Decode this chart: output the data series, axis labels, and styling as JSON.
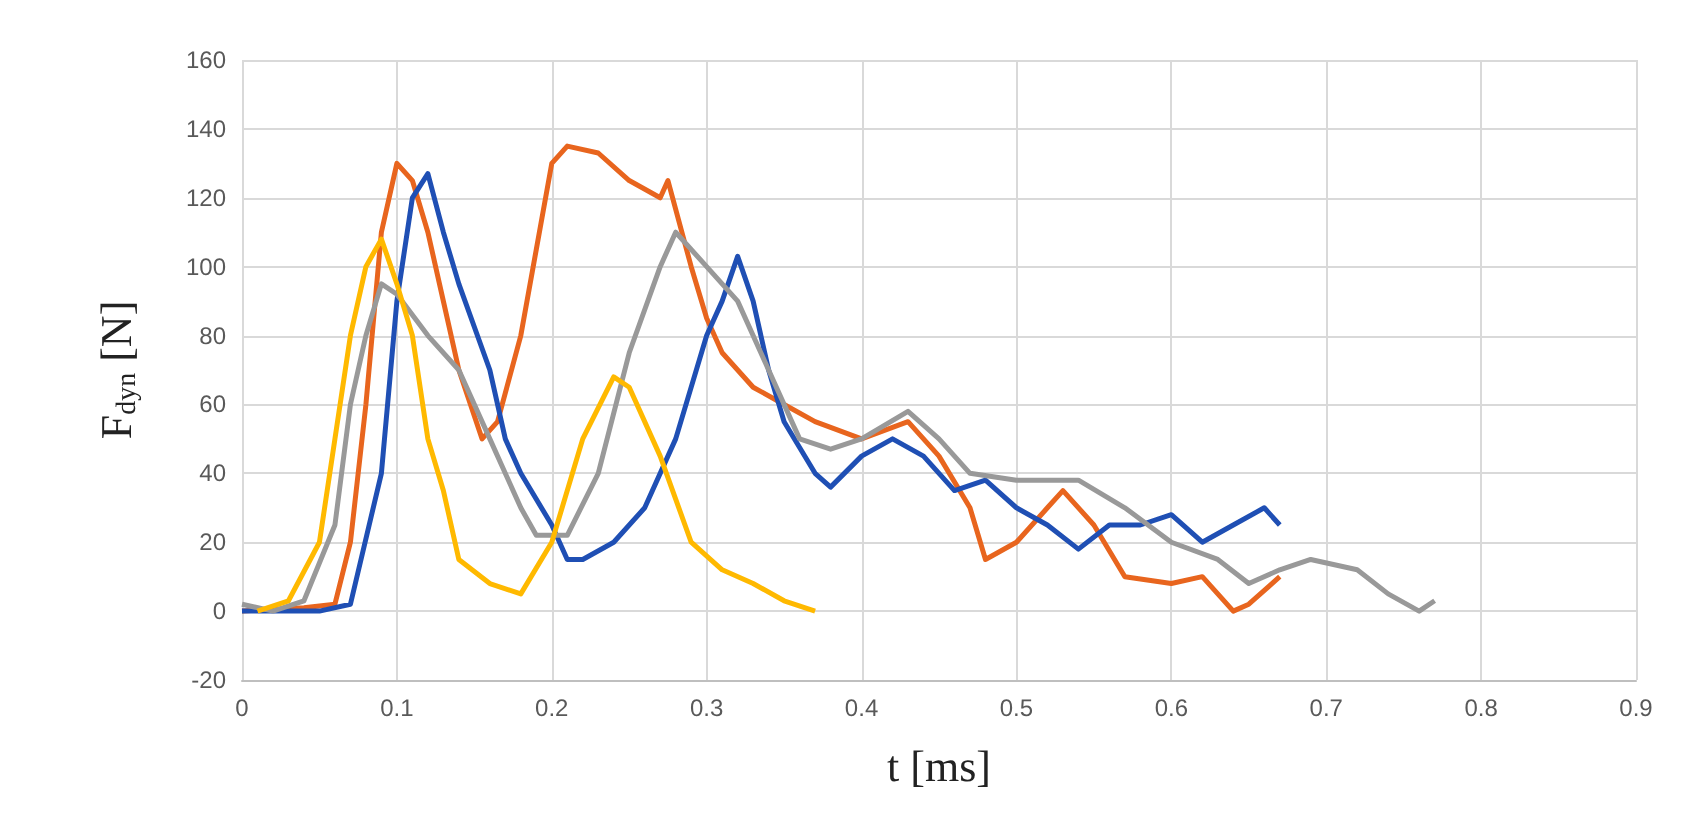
{
  "chart_data": {
    "type": "line",
    "xlabel": "t [ms]",
    "ylabel": "F$_{dyn}$ [N]",
    "xlim": [
      0,
      0.9
    ],
    "xticks": [
      0,
      0.1,
      0.2,
      0.3,
      0.4,
      0.5,
      0.6,
      0.7,
      0.8,
      0.9
    ],
    "ylim": [
      -20,
      160
    ],
    "yticks": [
      -20,
      0,
      20,
      40,
      60,
      80,
      100,
      120,
      140,
      160
    ],
    "grid": true,
    "marker": "none",
    "line_style": "solid",
    "series": [
      {
        "color": "#e8651e",
        "x": [
          0,
          0.04,
          0.06,
          0.07,
          0.08,
          0.09,
          0.1,
          0.11,
          0.12,
          0.13,
          0.14,
          0.155,
          0.165,
          0.18,
          0.19,
          0.2,
          0.21,
          0.23,
          0.25,
          0.27,
          0.275,
          0.29,
          0.3,
          0.31,
          0.33,
          0.35,
          0.37,
          0.4,
          0.43,
          0.45,
          0.47,
          0.48,
          0.5,
          0.52,
          0.53,
          0.55,
          0.57,
          0.6,
          0.62,
          0.64,
          0.65,
          0.67
        ],
        "values": [
          0,
          1,
          2,
          20,
          60,
          110,
          130,
          125,
          110,
          90,
          70,
          50,
          55,
          80,
          105,
          130,
          135,
          133,
          125,
          120,
          125,
          100,
          85,
          75,
          65,
          60,
          55,
          50,
          55,
          45,
          30,
          15,
          20,
          30,
          35,
          25,
          10,
          8,
          10,
          0,
          2,
          10
        ]
      },
      {
        "color": "#1f4fb4",
        "x": [
          0,
          0.05,
          0.07,
          0.09,
          0.1,
          0.11,
          0.12,
          0.13,
          0.14,
          0.16,
          0.17,
          0.18,
          0.2,
          0.21,
          0.22,
          0.24,
          0.26,
          0.28,
          0.3,
          0.31,
          0.32,
          0.33,
          0.34,
          0.35,
          0.37,
          0.38,
          0.4,
          0.42,
          0.44,
          0.46,
          0.48,
          0.5,
          0.52,
          0.54,
          0.56,
          0.58,
          0.6,
          0.62,
          0.64,
          0.66,
          0.67
        ],
        "values": [
          0,
          0,
          2,
          40,
          90,
          120,
          127,
          110,
          95,
          70,
          50,
          40,
          25,
          15,
          15,
          20,
          30,
          50,
          80,
          90,
          103,
          90,
          70,
          55,
          40,
          36,
          45,
          50,
          45,
          35,
          38,
          30,
          25,
          18,
          25,
          25,
          28,
          20,
          25,
          30,
          25
        ]
      },
      {
        "color": "#999999",
        "x": [
          0,
          0.02,
          0.04,
          0.06,
          0.07,
          0.08,
          0.09,
          0.1,
          0.12,
          0.14,
          0.16,
          0.18,
          0.19,
          0.21,
          0.23,
          0.25,
          0.27,
          0.28,
          0.3,
          0.32,
          0.34,
          0.36,
          0.38,
          0.4,
          0.43,
          0.45,
          0.47,
          0.5,
          0.52,
          0.54,
          0.57,
          0.6,
          0.63,
          0.65,
          0.67,
          0.69,
          0.72,
          0.74,
          0.76,
          0.77
        ],
        "values": [
          2,
          0,
          3,
          25,
          60,
          80,
          95,
          92,
          80,
          70,
          50,
          30,
          22,
          22,
          40,
          75,
          100,
          110,
          100,
          90,
          70,
          50,
          47,
          50,
          58,
          50,
          40,
          38,
          38,
          38,
          30,
          20,
          15,
          8,
          12,
          15,
          12,
          5,
          0,
          3
        ]
      },
      {
        "color": "#ffb900",
        "x": [
          0.01,
          0.03,
          0.05,
          0.06,
          0.07,
          0.08,
          0.09,
          0.1,
          0.11,
          0.12,
          0.13,
          0.14,
          0.16,
          0.18,
          0.2,
          0.22,
          0.24,
          0.25,
          0.27,
          0.29,
          0.31,
          0.33,
          0.35,
          0.37
        ],
        "values": [
          0,
          3,
          20,
          50,
          80,
          100,
          108,
          95,
          80,
          50,
          35,
          15,
          8,
          5,
          20,
          50,
          68,
          65,
          45,
          20,
          12,
          8,
          3,
          0
        ]
      }
    ]
  }
}
